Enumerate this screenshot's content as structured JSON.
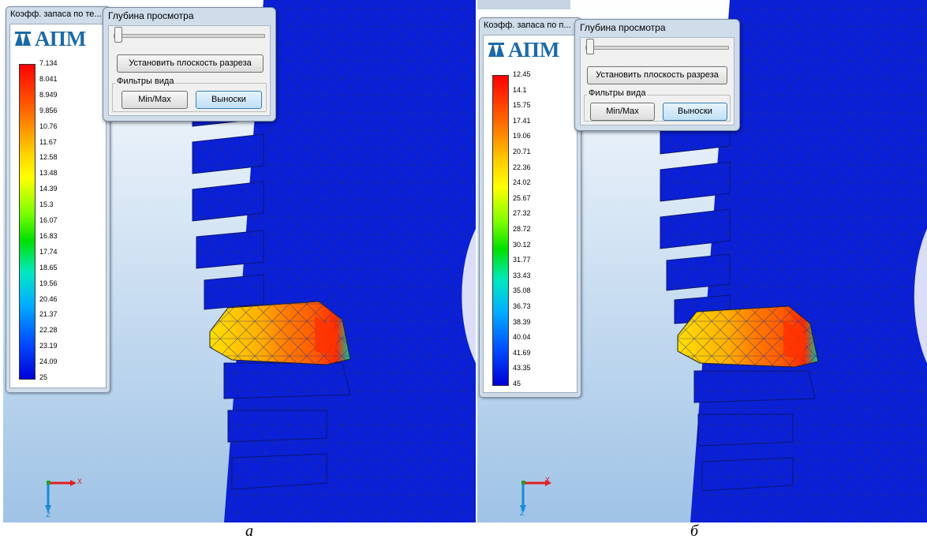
{
  "panel_a": {
    "legend_title": "Коэфф. запаса по те...",
    "logo_text": "АПМ",
    "ticks": [
      "7.134",
      "8.041",
      "8.949",
      "9.856",
      "10.76",
      "11.67",
      "12.58",
      "13.48",
      "14.39",
      "15.3",
      "16.07",
      "16.83",
      "17.74",
      "18.65",
      "19.56",
      "20.46",
      "21.37",
      "22.28",
      "23.19",
      "24.09",
      "25"
    ],
    "depth_title": "Глубина просмотра",
    "set_plane_label": "Установить плоскость разреза",
    "filters_label": "Фильтры вида",
    "minmax_label": "Min/Max",
    "callouts_label": "Выноски",
    "axis_x": "X",
    "axis_z": "Z",
    "caption": "а"
  },
  "panel_b": {
    "legend_title": "Коэфф. запаса по п...",
    "logo_text": "АПМ",
    "ticks": [
      "12.45",
      "14.1",
      "15.75",
      "17.41",
      "19.06",
      "20.71",
      "22.36",
      "24.02",
      "25.67",
      "27.32",
      "28.72",
      "30.12",
      "31.77",
      "33.43",
      "35.08",
      "36.73",
      "38.39",
      "40.04",
      "41.69",
      "43.35",
      "45"
    ],
    "depth_title": "Глубина просмотра",
    "set_plane_label": "Установить плоскость разреза",
    "filters_label": "Фильтры вида",
    "minmax_label": "Min/Max",
    "callouts_label": "Выноски",
    "axis_x": "X",
    "axis_z": "Z",
    "caption": "б"
  },
  "colors": {
    "mesh_blue": "#0a1fd8",
    "background_top": "#ffffff",
    "background_bottom": "#9fc3e6",
    "hot_zone": "#ff3300"
  }
}
